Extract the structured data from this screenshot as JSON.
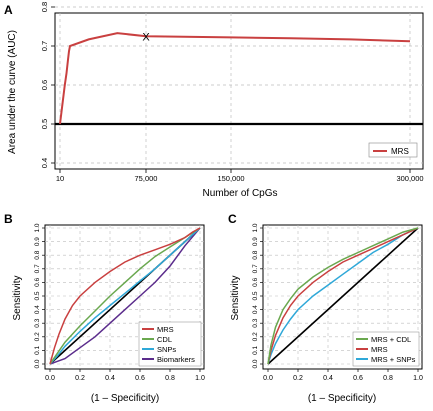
{
  "colors": {
    "mrs": "#c94040",
    "cdl": "#6aa84f",
    "snps": "#2fa8d8",
    "biomarkers": "#5b2c8c",
    "mrs_cdl": "#6aa84f",
    "mrs_snps": "#2fa8d8",
    "reference": "#000000",
    "grid": "#bdbdbd"
  },
  "chart_data": [
    {
      "panel": "A",
      "type": "line",
      "title": "",
      "xlabel": "Number of CpGs",
      "ylabel": "Area under the curve (AUC)",
      "xticks": [
        "10",
        "75,000",
        "150,000",
        "300,000"
      ],
      "xtick_values": [
        10,
        75000,
        150000,
        300000
      ],
      "xlim": [
        10,
        300000
      ],
      "yticks": [
        "0.4",
        "0.5",
        "0.6",
        "0.7",
        "0.8"
      ],
      "ytick_values": [
        0.4,
        0.5,
        0.6,
        0.7,
        0.8
      ],
      "ylim": [
        0.4,
        0.8
      ],
      "grid": true,
      "legend": "bottom-right",
      "reference_line": {
        "y": 0.5
      },
      "series": [
        {
          "name": "MRS",
          "color_key": "mrs",
          "x": [
            10,
            300,
            1000,
            3000,
            6000,
            12000,
            25000,
            50000,
            75000,
            100000,
            150000,
            200000,
            250000,
            300000
          ],
          "y": [
            0.5,
            0.6,
            0.63,
            0.665,
            0.687,
            0.7,
            0.717,
            0.733,
            0.725,
            0.724,
            0.722,
            0.72,
            0.717,
            0.712
          ]
        }
      ],
      "marker": {
        "label": "X",
        "x": 75000,
        "y": 0.725
      }
    },
    {
      "panel": "B",
      "type": "line",
      "title": "",
      "xlabel": "(1 – Specificity)",
      "ylabel": "Sensitivity",
      "xticks": [
        "0.0",
        "0.2",
        "0.4",
        "0.6",
        "0.8",
        "1.0"
      ],
      "yticks": [
        "0.0",
        "0.1",
        "0.2",
        "0.3",
        "0.4",
        "0.5",
        "0.6",
        "0.7",
        "0.8",
        "0.9",
        "1.0"
      ],
      "xlim": [
        0,
        1
      ],
      "ylim": [
        0,
        1
      ],
      "grid": true,
      "legend": "bottom-right",
      "reference_line": {
        "diagonal": true
      },
      "series": [
        {
          "name": "MRS",
          "color_key": "mrs",
          "x": [
            0,
            0.03,
            0.06,
            0.1,
            0.15,
            0.2,
            0.3,
            0.4,
            0.5,
            0.6,
            0.7,
            0.8,
            0.9,
            0.95,
            1.0
          ],
          "y": [
            0,
            0.12,
            0.22,
            0.33,
            0.43,
            0.5,
            0.6,
            0.68,
            0.75,
            0.8,
            0.84,
            0.88,
            0.93,
            0.97,
            1.0
          ]
        },
        {
          "name": "CDL",
          "color_key": "cdl",
          "x": [
            0,
            0.05,
            0.1,
            0.2,
            0.3,
            0.4,
            0.5,
            0.6,
            0.7,
            0.8,
            0.9,
            1.0
          ],
          "y": [
            0,
            0.08,
            0.16,
            0.28,
            0.39,
            0.5,
            0.6,
            0.7,
            0.79,
            0.86,
            0.93,
            1.0
          ]
        },
        {
          "name": "SNPs",
          "color_key": "snps",
          "x": [
            0,
            0.05,
            0.1,
            0.2,
            0.3,
            0.4,
            0.5,
            0.6,
            0.7,
            0.8,
            0.9,
            1.0
          ],
          "y": [
            0,
            0.06,
            0.13,
            0.24,
            0.34,
            0.43,
            0.52,
            0.61,
            0.7,
            0.8,
            0.9,
            1.0
          ]
        },
        {
          "name": "Biomarkers",
          "color_key": "biomarkers",
          "x": [
            0,
            0.05,
            0.1,
            0.2,
            0.3,
            0.4,
            0.5,
            0.6,
            0.7,
            0.8,
            0.9,
            1.0
          ],
          "y": [
            0,
            0.02,
            0.04,
            0.12,
            0.2,
            0.3,
            0.4,
            0.5,
            0.6,
            0.72,
            0.87,
            1.0
          ]
        }
      ]
    },
    {
      "panel": "C",
      "type": "line",
      "title": "",
      "xlabel": "(1 – Specificity)",
      "ylabel": "Sensitivity",
      "xticks": [
        "0.0",
        "0.2",
        "0.4",
        "0.6",
        "0.8",
        "1.0"
      ],
      "yticks": [
        "0.0",
        "0.1",
        "0.2",
        "0.3",
        "0.4",
        "0.5",
        "0.6",
        "0.7",
        "0.8",
        "0.9",
        "1.0"
      ],
      "xlim": [
        0,
        1
      ],
      "ylim": [
        0,
        1
      ],
      "grid": true,
      "legend": "bottom-right",
      "reference_line": {
        "diagonal": true
      },
      "series": [
        {
          "name": "MRS + CDL",
          "color_key": "mrs_cdl",
          "x": [
            0,
            0.02,
            0.05,
            0.1,
            0.15,
            0.2,
            0.3,
            0.4,
            0.5,
            0.6,
            0.7,
            0.8,
            0.9,
            1.0
          ],
          "y": [
            0,
            0.14,
            0.27,
            0.4,
            0.48,
            0.55,
            0.64,
            0.71,
            0.77,
            0.82,
            0.87,
            0.92,
            0.97,
            1.0
          ]
        },
        {
          "name": "MRS",
          "color_key": "mrs",
          "x": [
            0,
            0.02,
            0.05,
            0.1,
            0.15,
            0.2,
            0.3,
            0.4,
            0.5,
            0.6,
            0.7,
            0.8,
            0.9,
            1.0
          ],
          "y": [
            0,
            0.1,
            0.21,
            0.34,
            0.43,
            0.5,
            0.6,
            0.68,
            0.75,
            0.8,
            0.85,
            0.9,
            0.95,
            1.0
          ]
        },
        {
          "name": "MRS + SNPs",
          "color_key": "mrs_snps",
          "x": [
            0,
            0.02,
            0.05,
            0.1,
            0.15,
            0.2,
            0.3,
            0.4,
            0.5,
            0.6,
            0.7,
            0.8,
            0.9,
            1.0
          ],
          "y": [
            0,
            0.07,
            0.15,
            0.25,
            0.33,
            0.4,
            0.5,
            0.58,
            0.66,
            0.74,
            0.82,
            0.88,
            0.95,
            1.0
          ]
        }
      ]
    }
  ]
}
